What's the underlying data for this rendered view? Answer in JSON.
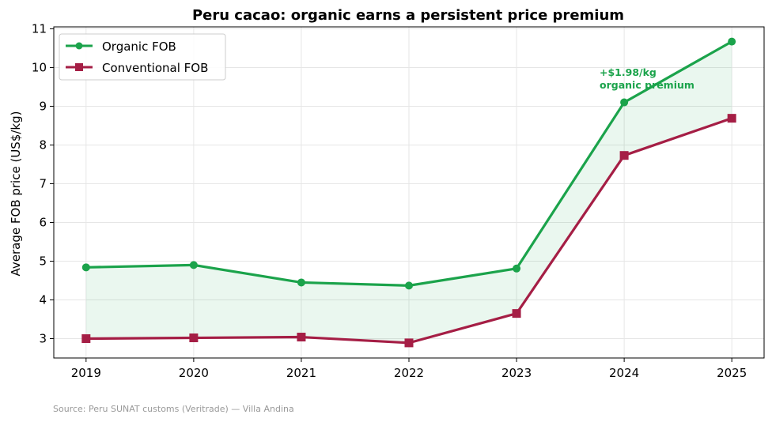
{
  "chart_data": {
    "type": "line",
    "title": "Peru cacao: organic earns a persistent price premium",
    "xlabel": "",
    "ylabel": "Average FOB price (US$/kg)",
    "x": [
      2019,
      2020,
      2021,
      2022,
      2023,
      2024,
      2025
    ],
    "x_tick_labels": [
      "2019",
      "2020",
      "2021",
      "2022",
      "2023",
      "2024",
      "2025"
    ],
    "ylim": [
      2.5,
      11.05
    ],
    "y_ticks": [
      3,
      4,
      5,
      6,
      7,
      8,
      9,
      10,
      11
    ],
    "y_tick_labels": [
      "3",
      "4",
      "5",
      "6",
      "7",
      "8",
      "9",
      "10",
      "11"
    ],
    "grid": true,
    "legend_position": "top-left",
    "series": [
      {
        "name": "Organic FOB",
        "values": [
          4.84,
          4.9,
          4.45,
          4.37,
          4.81,
          9.1,
          10.67
        ],
        "color": "#1ba34b",
        "marker": "circle"
      },
      {
        "name": "Conventional FOB",
        "values": [
          3.0,
          3.02,
          3.04,
          2.89,
          3.65,
          7.73,
          8.69
        ],
        "color": "#a51e45",
        "marker": "square"
      }
    ],
    "fill_between": {
      "color": "#1ba34b"
    },
    "annotation": {
      "lines": [
        "+$1.98/kg",
        "organic premium"
      ],
      "color": "#1ba34b"
    },
    "source_note": "Source: Peru SUNAT customs (Veritrade) — Villa Andina"
  }
}
